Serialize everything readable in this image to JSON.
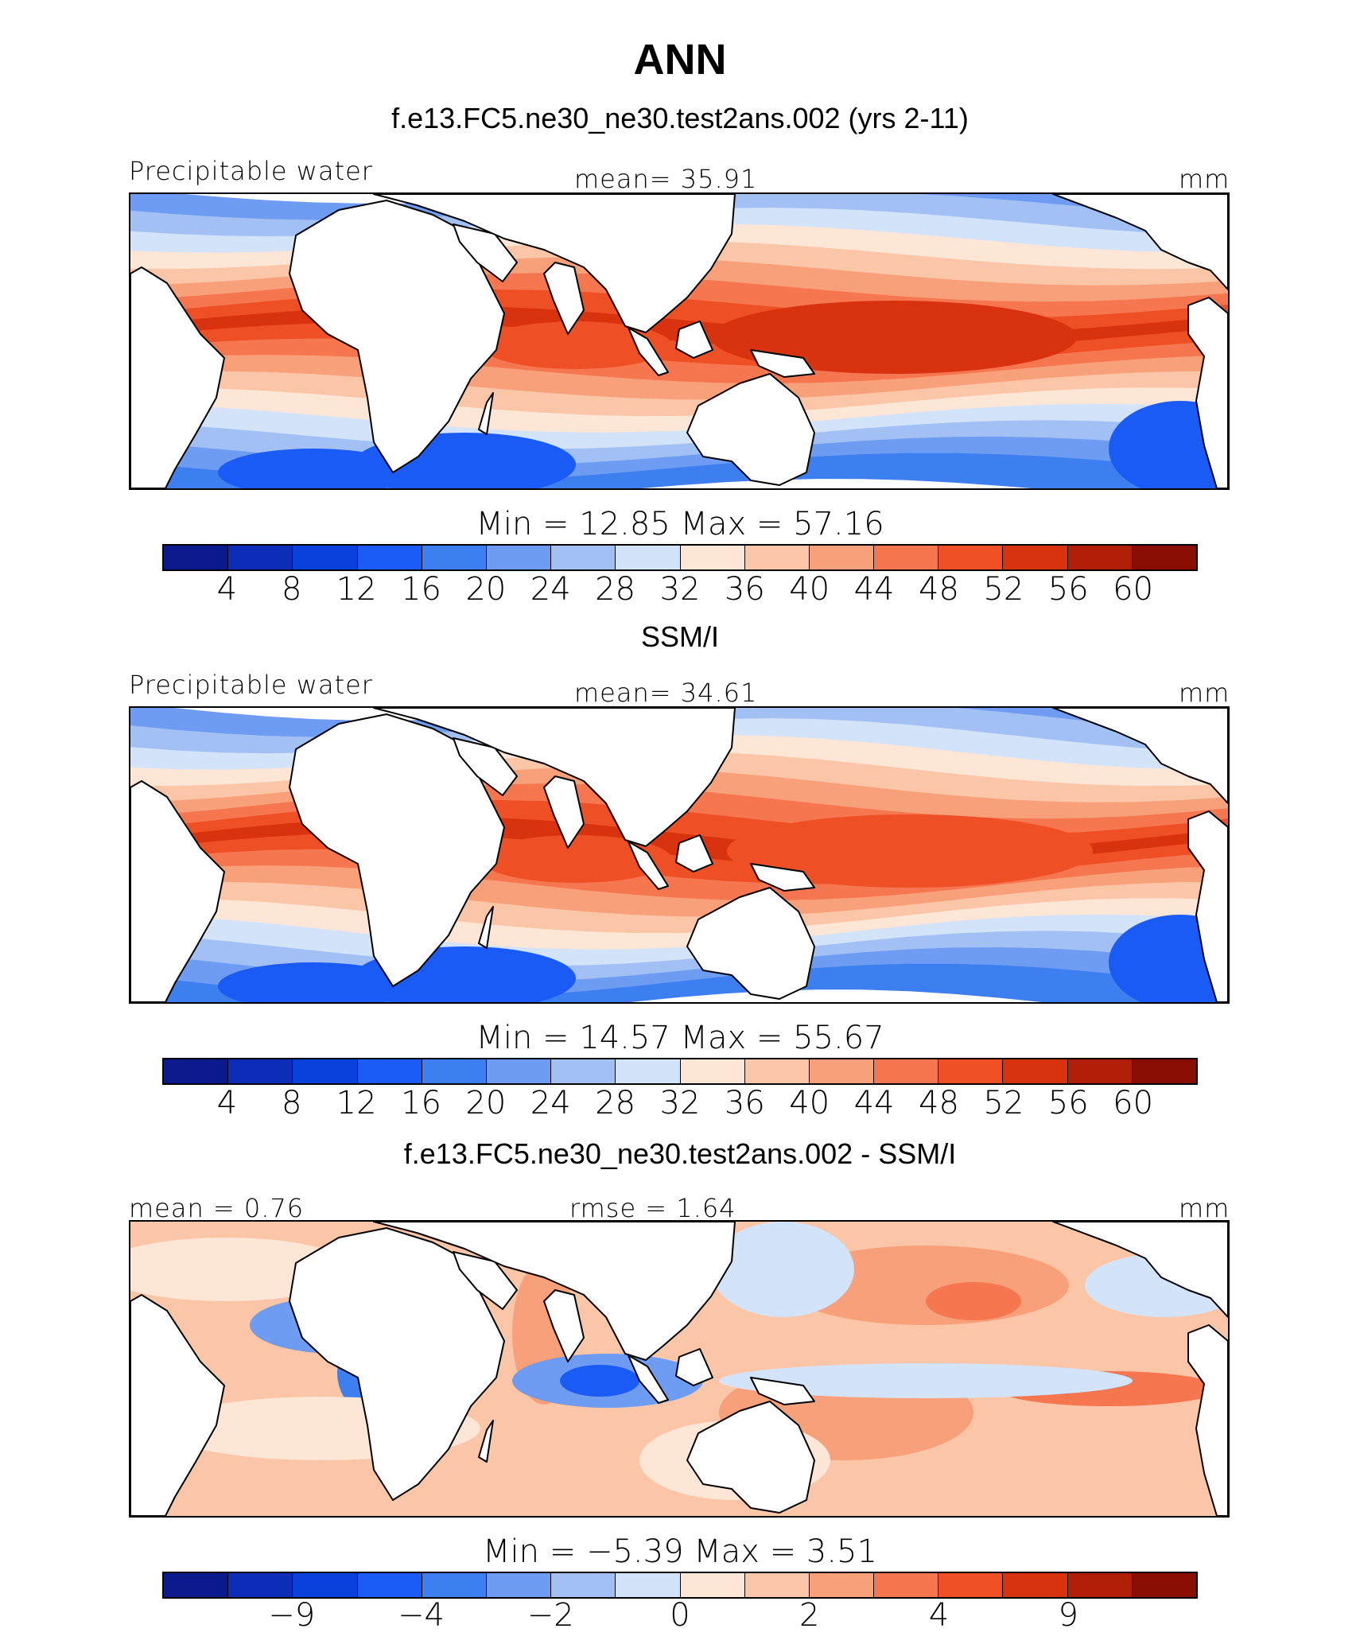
{
  "title": "ANN",
  "palette": [
    "#0a1a8c",
    "#0b2db8",
    "#0a40dc",
    "#1a5af5",
    "#3d7ff0",
    "#6e9cf2",
    "#a3c0f5",
    "#d3e3fa",
    "#fde6d5",
    "#fbc6a8",
    "#f8a07a",
    "#f5764f",
    "#ef4f24",
    "#d8320f",
    "#b01e08",
    "#8a0d03"
  ],
  "chart_data": [
    {
      "type": "heatmap",
      "title": "f.e13.FC5.ne30_ne30.test2ans.002 (yrs 2-11)",
      "left_label": "Precipitable water",
      "center_label": "mean=   35.91",
      "units": "mm",
      "mean": 35.91,
      "min": 12.85,
      "max": 57.16,
      "stats_text": "Min  =    12.85  Max  =    57.16",
      "levels": [
        4,
        8,
        12,
        16,
        20,
        24,
        28,
        32,
        36,
        40,
        44,
        48,
        52,
        56,
        60
      ],
      "tick_labels": [
        "4",
        "8",
        "12",
        "16",
        "20",
        "24",
        "28",
        "32",
        "36",
        "40",
        "44",
        "48",
        "52",
        "56",
        "60"
      ]
    },
    {
      "type": "heatmap",
      "title": "SSM/I",
      "left_label": "Precipitable water",
      "center_label": "mean=   34.61",
      "units": "mm",
      "mean": 34.61,
      "min": 14.57,
      "max": 55.67,
      "stats_text": "Min  =    14.57  Max  =    55.67",
      "levels": [
        4,
        8,
        12,
        16,
        20,
        24,
        28,
        32,
        36,
        40,
        44,
        48,
        52,
        56,
        60
      ],
      "tick_labels": [
        "4",
        "8",
        "12",
        "16",
        "20",
        "24",
        "28",
        "32",
        "36",
        "40",
        "44",
        "48",
        "52",
        "56",
        "60"
      ]
    },
    {
      "type": "heatmap",
      "title": "f.e13.FC5.ne30_ne30.test2ans.002 - SSM/I",
      "left_label": "mean  =    0.76",
      "center_label": "rmse  =    1.64",
      "units": "mm",
      "mean": 0.76,
      "rmse": 1.64,
      "min": -5.39,
      "max": 3.51,
      "stats_text": "Min  =   −5.39  Max  =    3.51",
      "levels": [
        -9,
        -4,
        -2,
        0,
        2,
        4,
        9
      ],
      "tick_labels": [
        "−9",
        "−4",
        "−2",
        "0",
        "2",
        "4",
        "9"
      ]
    }
  ]
}
